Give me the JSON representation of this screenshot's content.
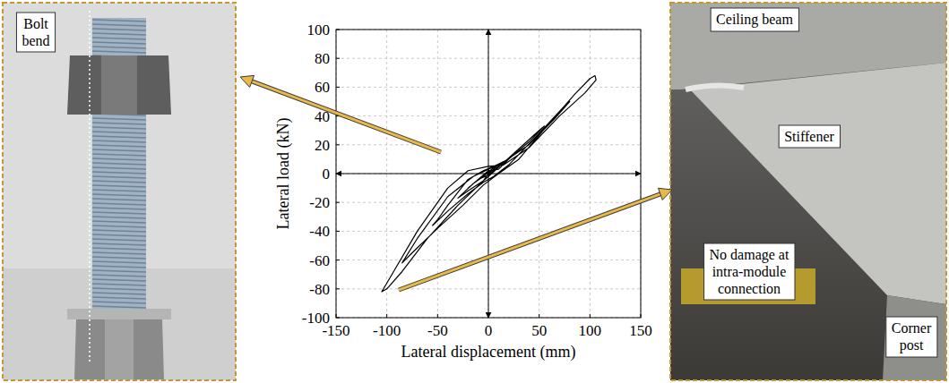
{
  "chart_data": {
    "type": "line",
    "x_label": "Lateral displacement (mm)",
    "y_label": "Lateral load (kN)",
    "xlim": [
      -150,
      150
    ],
    "xticks": [
      -150,
      -100,
      -50,
      0,
      50,
      100,
      150
    ],
    "ylim": [
      -100,
      100
    ],
    "yticks": [
      -100,
      -80,
      -60,
      -40,
      -20,
      0,
      20,
      40,
      60,
      80,
      100
    ],
    "grid": true,
    "series": [
      {
        "color": "#000000",
        "x": [
          0,
          10,
          20,
          10,
          0,
          -10,
          -20,
          -10,
          0,
          15,
          30,
          20,
          5,
          -5,
          -15,
          -30,
          -20,
          -5,
          0,
          25,
          50,
          55,
          40,
          20,
          5,
          -5,
          -20,
          -40,
          -50,
          -55,
          -40,
          -20,
          -5,
          5,
          20,
          50,
          75,
          80,
          65,
          40,
          15,
          0,
          -15,
          -40,
          -70,
          -85,
          -75,
          -50,
          -25,
          -5,
          10,
          30,
          60,
          85,
          100,
          105,
          106,
          95,
          70,
          40,
          15,
          0,
          -20,
          -40,
          -70,
          -95,
          -105,
          -100,
          -85,
          -60,
          -30,
          -5,
          0
        ],
        "values": [
          0,
          6,
          10,
          3,
          2,
          -4,
          -10,
          -4,
          -1,
          8,
          16,
          10,
          4,
          -2,
          -7,
          -17,
          -12,
          -5,
          -2,
          14,
          30,
          33,
          22,
          10,
          5,
          2,
          -4,
          -22,
          -32,
          -36,
          -26,
          -14,
          -6,
          -2,
          6,
          28,
          47,
          50,
          38,
          20,
          8,
          3,
          -2,
          -16,
          -45,
          -62,
          -55,
          -38,
          -22,
          -8,
          0,
          10,
          35,
          55,
          66,
          68,
          65,
          56,
          40,
          18,
          6,
          5,
          2,
          -10,
          -40,
          -70,
          -82,
          -80,
          -68,
          -45,
          -22,
          -5,
          0
        ]
      }
    ]
  },
  "left_photo": {
    "label": "Bolt bend"
  },
  "right_photo": {
    "labels": [
      "Ceiling beam",
      "Stiffener",
      "No damage at intra-module connection",
      "Corner post"
    ]
  }
}
